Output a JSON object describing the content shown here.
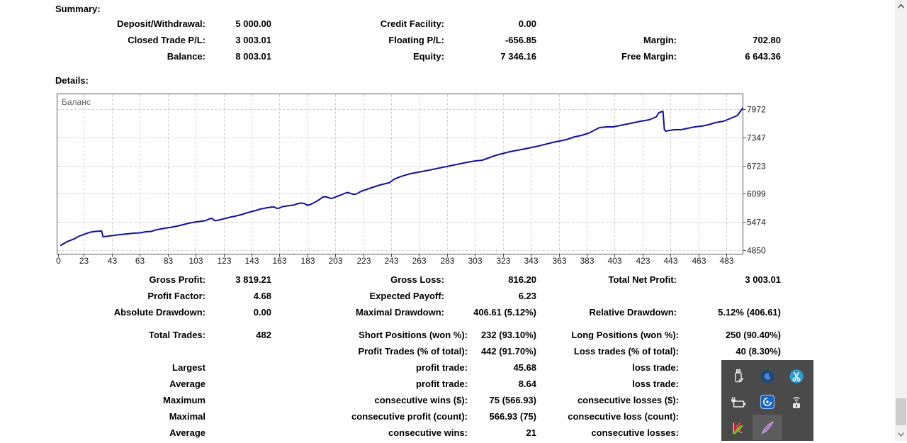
{
  "headings": {
    "summary": "Summary:",
    "details": "Details:"
  },
  "tables": [
    {
      "id": "summary",
      "variant": "a",
      "rows": [
        [
          "Deposit/Withdrawal:",
          "5 000.00",
          "Credit Facility:",
          "0.00",
          "",
          ""
        ],
        [
          "Closed Trade P/L:",
          "3 003.01",
          "Floating P/L:",
          "-656.85",
          "Margin:",
          "702.80"
        ],
        [
          "Balance:",
          "8 003.01",
          "Equity:",
          "7 346.16",
          "Free Margin:",
          "6 643.36"
        ]
      ]
    },
    {
      "id": "details-top",
      "variant": "a",
      "rows": [
        [
          "Gross Profit:",
          "3 819.21",
          "Gross Loss:",
          "816.20",
          "Total Net Profit:",
          "3 003.01"
        ],
        [
          "Profit Factor:",
          "4.68",
          "Expected Payoff:",
          "6.23",
          "",
          ""
        ],
        [
          "Absolute Drawdown:",
          "0.00",
          "Maximal Drawdown:",
          "406.61 (5.12%)",
          "Relative Drawdown:",
          "5.12% (406.61)"
        ]
      ]
    },
    {
      "id": "details-trades",
      "variant": "b",
      "rows": [
        [
          "Total Trades:",
          "482",
          "Short Positions (won %):",
          "232 (93.10%)",
          "Long Positions (won %):",
          "250 (90.40%)"
        ],
        [
          "",
          "",
          "Profit Trades (% of total):",
          "442 (91.70%)",
          "Loss trades (% of total):",
          "40 (8.30%)"
        ]
      ]
    },
    {
      "id": "details-extremes",
      "variant": "b",
      "rows": [
        [
          "Largest",
          "",
          "profit trade:",
          "45.68",
          "loss trade:",
          ""
        ],
        [
          "Average",
          "",
          "profit trade:",
          "8.64",
          "loss trade:",
          ""
        ],
        [
          "Maximum",
          "",
          "consecutive wins ($):",
          "75 (566.93)",
          "consecutive losses ($):",
          ""
        ],
        [
          "Maximal",
          "",
          "consecutive profit (count):",
          "566.93 (75)",
          "consecutive loss (count):",
          ""
        ],
        [
          "Average",
          "",
          "consecutive wins:",
          "21",
          "consecutive losses:",
          ""
        ]
      ]
    }
  ],
  "chart_data": {
    "type": "line",
    "title": "",
    "legend": "Баланс",
    "xlabel": "",
    "ylabel": "",
    "grid": true,
    "legend_position": "top-left",
    "line_color": "#10109e",
    "x_ticks": [
      "0",
      "23",
      "43",
      "63",
      "83",
      "103",
      "123",
      "143",
      "163",
      "183",
      "203",
      "223",
      "243",
      "263",
      "283",
      "303",
      "323",
      "343",
      "363",
      "383",
      "403",
      "423",
      "443",
      "463",
      "483"
    ],
    "y_ticks": [
      7972,
      7347,
      6723,
      6099,
      5474,
      4850
    ],
    "ylim": [
      4850,
      7972
    ],
    "xlim": [
      0,
      495
    ],
    "series": [
      {
        "name": "Баланс",
        "points": [
          [
            0,
            4950
          ],
          [
            5,
            5040
          ],
          [
            10,
            5100
          ],
          [
            14,
            5165
          ],
          [
            18,
            5210
          ],
          [
            22,
            5250
          ],
          [
            26,
            5268
          ],
          [
            30,
            5275
          ],
          [
            31,
            5150
          ],
          [
            34,
            5158
          ],
          [
            39,
            5180
          ],
          [
            44,
            5196
          ],
          [
            49,
            5212
          ],
          [
            54,
            5228
          ],
          [
            58,
            5235
          ],
          [
            62,
            5258
          ],
          [
            66,
            5266
          ],
          [
            70,
            5305
          ],
          [
            76,
            5336
          ],
          [
            81,
            5360
          ],
          [
            85,
            5385
          ],
          [
            89,
            5415
          ],
          [
            93,
            5446
          ],
          [
            97,
            5470
          ],
          [
            101,
            5486
          ],
          [
            105,
            5502
          ],
          [
            108,
            5540
          ],
          [
            110,
            5556
          ],
          [
            112,
            5502
          ],
          [
            114,
            5510
          ],
          [
            117,
            5533
          ],
          [
            120,
            5556
          ],
          [
            123,
            5580
          ],
          [
            127,
            5604
          ],
          [
            131,
            5635
          ],
          [
            135,
            5674
          ],
          [
            139,
            5706
          ],
          [
            142,
            5730
          ],
          [
            145,
            5760
          ],
          [
            149,
            5784
          ],
          [
            152,
            5800
          ],
          [
            155,
            5808
          ],
          [
            157,
            5776
          ],
          [
            159,
            5784
          ],
          [
            161,
            5815
          ],
          [
            163,
            5823
          ],
          [
            166,
            5838
          ],
          [
            169,
            5847
          ],
          [
            171,
            5870
          ],
          [
            174,
            5894
          ],
          [
            177,
            5886
          ],
          [
            179,
            5847
          ],
          [
            181,
            5855
          ],
          [
            183,
            5886
          ],
          [
            186,
            5933
          ],
          [
            188,
            5972
          ],
          [
            190,
            6020
          ],
          [
            192,
            6035
          ],
          [
            194,
            6020
          ],
          [
            196,
            5996
          ],
          [
            198,
            6004
          ],
          [
            200,
            6035
          ],
          [
            203,
            6066
          ],
          [
            206,
            6105
          ],
          [
            208,
            6129
          ],
          [
            210,
            6113
          ],
          [
            212,
            6090
          ],
          [
            214,
            6090
          ],
          [
            216,
            6113
          ],
          [
            218,
            6152
          ],
          [
            221,
            6184
          ],
          [
            224,
            6215
          ],
          [
            227,
            6247
          ],
          [
            230,
            6278
          ],
          [
            233,
            6302
          ],
          [
            236,
            6325
          ],
          [
            239,
            6348
          ],
          [
            242,
            6420
          ],
          [
            246,
            6470
          ],
          [
            250,
            6510
          ],
          [
            254,
            6545
          ],
          [
            265,
            6607
          ],
          [
            275,
            6670
          ],
          [
            285,
            6733
          ],
          [
            295,
            6796
          ],
          [
            301,
            6827
          ],
          [
            306,
            6843
          ],
          [
            316,
            6953
          ],
          [
            326,
            7031
          ],
          [
            337,
            7094
          ],
          [
            347,
            7157
          ],
          [
            357,
            7235
          ],
          [
            362,
            7266
          ],
          [
            367,
            7298
          ],
          [
            373,
            7360
          ],
          [
            378,
            7392
          ],
          [
            383,
            7439
          ],
          [
            388,
            7517
          ],
          [
            391,
            7564
          ],
          [
            396,
            7580
          ],
          [
            401,
            7580
          ],
          [
            406,
            7611
          ],
          [
            411,
            7643
          ],
          [
            416,
            7674
          ],
          [
            421,
            7706
          ],
          [
            427,
            7737
          ],
          [
            432,
            7800
          ],
          [
            434,
            7894
          ],
          [
            437,
            7925
          ],
          [
            438,
            7517
          ],
          [
            439,
            7486
          ],
          [
            445,
            7517
          ],
          [
            450,
            7517
          ],
          [
            455,
            7549
          ],
          [
            460,
            7580
          ],
          [
            465,
            7596
          ],
          [
            470,
            7627
          ],
          [
            475,
            7674
          ],
          [
            481,
            7706
          ],
          [
            486,
            7768
          ],
          [
            491,
            7831
          ],
          [
            495,
            8003
          ]
        ]
      }
    ]
  },
  "tray": {
    "icons": [
      "usb-drive-icon",
      "hexagon-shield-icon",
      "scissors-app-icon",
      "power-battery-icon",
      "vortex-app-icon",
      "modem-antenna-icon",
      "kaspersky-icon",
      "feather-icon"
    ]
  },
  "colors": {
    "balance_line": "#10109e",
    "grid": "#c9c9c9",
    "tray_background": "#4a4a4a",
    "scroll_track": "#f0f0f0",
    "scroll_thumb": "#cdcdcd"
  }
}
